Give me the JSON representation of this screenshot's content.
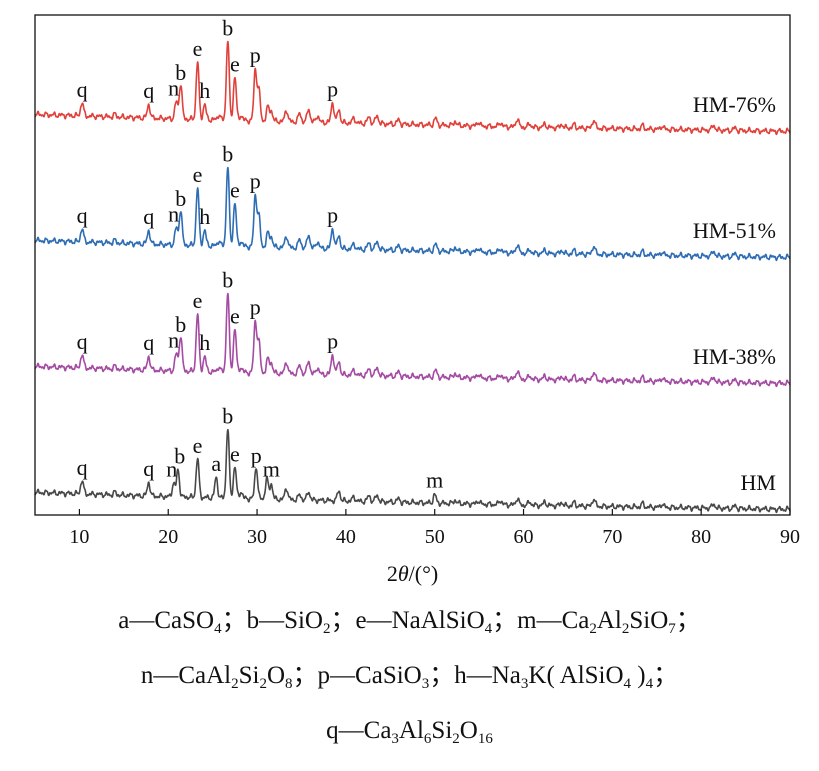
{
  "chart_data": {
    "type": "line",
    "title": "",
    "xlabel": "2θ/(°)",
    "ylabel": "",
    "xlim": [
      5,
      90
    ],
    "xticks": [
      10,
      20,
      30,
      40,
      50,
      60,
      70,
      80,
      90
    ],
    "yticks_shown": false,
    "grid": false,
    "colors": {
      "HM-76%": "#e0413a",
      "HM-51%": "#2e6db4",
      "HM-38%": "#a44ba3",
      "HM": "#484848"
    },
    "series": [
      {
        "name": "HM-76%",
        "baseline": [
          [
            5,
            0.8
          ],
          [
            20,
            0.55
          ],
          [
            40,
            0.3
          ],
          [
            60,
            0.05
          ],
          [
            90,
            -0.2
          ]
        ],
        "peaks": [
          [
            10.3,
            0.8
          ],
          [
            14.0,
            0.15
          ],
          [
            17.8,
            0.8
          ],
          [
            20.9,
            1.0
          ],
          [
            21.4,
            2.1
          ],
          [
            23.3,
            3.4
          ],
          [
            24.1,
            0.9
          ],
          [
            25.7,
            0.3
          ],
          [
            26.7,
            4.7
          ],
          [
            27.5,
            2.6
          ],
          [
            28.2,
            0.3
          ],
          [
            29.8,
            3.0
          ],
          [
            30.2,
            1.8
          ],
          [
            31.2,
            0.8
          ],
          [
            31.6,
            0.6
          ],
          [
            33.3,
            0.7
          ],
          [
            34.8,
            0.5
          ],
          [
            35.8,
            0.8
          ],
          [
            36.8,
            0.4
          ],
          [
            38.5,
            1.2
          ],
          [
            39.2,
            0.8
          ],
          [
            40.9,
            0.3
          ],
          [
            42.6,
            0.4
          ],
          [
            43.5,
            0.5
          ],
          [
            45.9,
            0.25
          ],
          [
            50.1,
            0.4
          ],
          [
            52.3,
            0.25
          ],
          [
            54.9,
            0.25
          ],
          [
            57.4,
            0.25
          ],
          [
            59.3,
            0.5
          ],
          [
            60.7,
            0.2
          ],
          [
            62.4,
            0.2
          ],
          [
            64.3,
            0.2
          ],
          [
            65.7,
            0.2
          ],
          [
            67.9,
            0.5
          ],
          [
            73.4,
            0.2
          ],
          [
            75.6,
            0.2
          ],
          [
            81.4,
            0.3
          ],
          [
            83.8,
            0.15
          ]
        ],
        "peak_labels": [
          {
            "x": 10.3,
            "label": "q"
          },
          {
            "x": 17.8,
            "label": "q"
          },
          {
            "x": 20.6,
            "label": "n"
          },
          {
            "x": 21.4,
            "label": "b"
          },
          {
            "x": 23.3,
            "label": "e"
          },
          {
            "x": 24.1,
            "label": "h"
          },
          {
            "x": 26.7,
            "label": "b"
          },
          {
            "x": 27.5,
            "label": "e"
          },
          {
            "x": 29.8,
            "label": "p"
          },
          {
            "x": 38.5,
            "label": "p"
          }
        ]
      },
      {
        "name": "HM-51%",
        "baseline": [
          [
            5,
            0.8
          ],
          [
            20,
            0.55
          ],
          [
            40,
            0.3
          ],
          [
            60,
            0.05
          ],
          [
            90,
            -0.2
          ]
        ],
        "peaks": [
          [
            10.3,
            0.8
          ],
          [
            14.0,
            0.15
          ],
          [
            17.8,
            0.8
          ],
          [
            20.9,
            1.0
          ],
          [
            21.4,
            2.1
          ],
          [
            23.3,
            3.4
          ],
          [
            24.1,
            0.9
          ],
          [
            25.7,
            0.3
          ],
          [
            26.7,
            4.7
          ],
          [
            27.5,
            2.6
          ],
          [
            28.2,
            0.3
          ],
          [
            29.8,
            3.0
          ],
          [
            30.2,
            1.8
          ],
          [
            31.2,
            0.8
          ],
          [
            31.6,
            0.6
          ],
          [
            33.3,
            0.7
          ],
          [
            34.8,
            0.5
          ],
          [
            35.8,
            0.8
          ],
          [
            36.8,
            0.4
          ],
          [
            38.5,
            1.2
          ],
          [
            39.2,
            0.8
          ],
          [
            40.9,
            0.3
          ],
          [
            42.6,
            0.4
          ],
          [
            43.5,
            0.5
          ],
          [
            45.9,
            0.25
          ],
          [
            50.1,
            0.4
          ],
          [
            52.3,
            0.25
          ],
          [
            54.9,
            0.25
          ],
          [
            57.4,
            0.25
          ],
          [
            59.3,
            0.5
          ],
          [
            60.7,
            0.2
          ],
          [
            62.4,
            0.2
          ],
          [
            64.3,
            0.2
          ],
          [
            65.7,
            0.2
          ],
          [
            67.9,
            0.5
          ],
          [
            73.4,
            0.2
          ],
          [
            75.6,
            0.2
          ],
          [
            81.4,
            0.3
          ],
          [
            83.8,
            0.15
          ]
        ],
        "peak_labels": [
          {
            "x": 10.3,
            "label": "q"
          },
          {
            "x": 17.8,
            "label": "q"
          },
          {
            "x": 20.6,
            "label": "n"
          },
          {
            "x": 21.4,
            "label": "b"
          },
          {
            "x": 23.3,
            "label": "e"
          },
          {
            "x": 24.1,
            "label": "h"
          },
          {
            "x": 26.7,
            "label": "b"
          },
          {
            "x": 27.5,
            "label": "e"
          },
          {
            "x": 29.8,
            "label": "p"
          },
          {
            "x": 38.5,
            "label": "p"
          }
        ]
      },
      {
        "name": "HM-38%",
        "baseline": [
          [
            5,
            0.8
          ],
          [
            20,
            0.55
          ],
          [
            40,
            0.3
          ],
          [
            60,
            0.05
          ],
          [
            90,
            -0.2
          ]
        ],
        "peaks": [
          [
            10.3,
            0.8
          ],
          [
            14.0,
            0.15
          ],
          [
            17.8,
            0.8
          ],
          [
            20.9,
            1.0
          ],
          [
            21.4,
            2.1
          ],
          [
            23.3,
            3.4
          ],
          [
            24.1,
            0.9
          ],
          [
            25.7,
            0.3
          ],
          [
            26.7,
            4.7
          ],
          [
            27.5,
            2.6
          ],
          [
            28.2,
            0.3
          ],
          [
            29.8,
            3.0
          ],
          [
            30.2,
            1.8
          ],
          [
            31.2,
            0.8
          ],
          [
            31.6,
            0.6
          ],
          [
            33.3,
            0.7
          ],
          [
            34.8,
            0.5
          ],
          [
            35.8,
            0.8
          ],
          [
            36.8,
            0.4
          ],
          [
            38.5,
            1.2
          ],
          [
            39.2,
            0.8
          ],
          [
            40.9,
            0.3
          ],
          [
            42.6,
            0.4
          ],
          [
            43.5,
            0.5
          ],
          [
            45.9,
            0.25
          ],
          [
            50.1,
            0.4
          ],
          [
            52.3,
            0.25
          ],
          [
            54.9,
            0.25
          ],
          [
            57.4,
            0.25
          ],
          [
            59.3,
            0.5
          ],
          [
            60.7,
            0.2
          ],
          [
            62.4,
            0.2
          ],
          [
            64.3,
            0.2
          ],
          [
            65.7,
            0.2
          ],
          [
            67.9,
            0.5
          ],
          [
            73.4,
            0.2
          ],
          [
            75.6,
            0.2
          ],
          [
            81.4,
            0.3
          ],
          [
            83.8,
            0.15
          ]
        ],
        "peak_labels": [
          {
            "x": 10.3,
            "label": "q"
          },
          {
            "x": 17.8,
            "label": "q"
          },
          {
            "x": 20.6,
            "label": "n"
          },
          {
            "x": 21.4,
            "label": "b"
          },
          {
            "x": 23.3,
            "label": "e"
          },
          {
            "x": 24.1,
            "label": "h"
          },
          {
            "x": 26.7,
            "label": "b"
          },
          {
            "x": 27.5,
            "label": "e"
          },
          {
            "x": 29.8,
            "label": "p"
          },
          {
            "x": 38.5,
            "label": "p"
          }
        ]
      },
      {
        "name": "HM",
        "baseline": [
          [
            5,
            0.8
          ],
          [
            20,
            0.55
          ],
          [
            40,
            0.3
          ],
          [
            60,
            0.05
          ],
          [
            90,
            -0.2
          ]
        ],
        "peaks": [
          [
            10.3,
            0.8
          ],
          [
            14.0,
            0.15
          ],
          [
            17.8,
            0.8
          ],
          [
            20.6,
            0.8
          ],
          [
            21.1,
            1.6
          ],
          [
            23.3,
            2.3
          ],
          [
            25.4,
            1.2
          ],
          [
            26.7,
            4.1
          ],
          [
            27.5,
            1.9
          ],
          [
            28.2,
            0.4
          ],
          [
            29.9,
            1.9
          ],
          [
            31.1,
            1.2
          ],
          [
            31.6,
            0.9
          ],
          [
            33.3,
            0.7
          ],
          [
            34.8,
            0.3
          ],
          [
            35.8,
            0.5
          ],
          [
            39.2,
            0.6
          ],
          [
            40.9,
            0.25
          ],
          [
            42.6,
            0.35
          ],
          [
            43.5,
            0.4
          ],
          [
            45.9,
            0.2
          ],
          [
            50.0,
            0.5
          ],
          [
            52.3,
            0.2
          ],
          [
            54.9,
            0.2
          ],
          [
            57.4,
            0.25
          ],
          [
            59.3,
            0.4
          ],
          [
            60.7,
            0.2
          ],
          [
            62.4,
            0.2
          ],
          [
            64.3,
            0.2
          ],
          [
            65.7,
            0.2
          ],
          [
            67.9,
            0.45
          ],
          [
            73.4,
            0.2
          ],
          [
            75.6,
            0.2
          ],
          [
            81.4,
            0.25
          ],
          [
            83.8,
            0.15
          ]
        ],
        "peak_labels": [
          {
            "x": 10.3,
            "label": "q"
          },
          {
            "x": 17.8,
            "label": "q"
          },
          {
            "x": 20.4,
            "label": "n"
          },
          {
            "x": 21.3,
            "label": "b"
          },
          {
            "x": 23.3,
            "label": "e"
          },
          {
            "x": 25.4,
            "label": "a"
          },
          {
            "x": 26.7,
            "label": "b"
          },
          {
            "x": 27.5,
            "label": "e"
          },
          {
            "x": 29.9,
            "label": "p"
          },
          {
            "x": 31.6,
            "label": "m"
          },
          {
            "x": 50.0,
            "label": "m"
          }
        ]
      }
    ],
    "legend_lines": [
      [
        {
          "t": "a—CaSO"
        },
        {
          "sub": "4"
        },
        {
          "t": "；b—SiO"
        },
        {
          "sub": "2"
        },
        {
          "t": "；e—NaAlSiO"
        },
        {
          "sub": "4"
        },
        {
          "t": "；m—Ca"
        },
        {
          "sub": "2"
        },
        {
          "t": "Al"
        },
        {
          "sub": "2"
        },
        {
          "t": "SiO"
        },
        {
          "sub": "7"
        },
        {
          "t": "；"
        }
      ],
      [
        {
          "t": "n—CaAl"
        },
        {
          "sub": "2"
        },
        {
          "t": "Si"
        },
        {
          "sub": "2"
        },
        {
          "t": "O"
        },
        {
          "sub": "8"
        },
        {
          "t": "；p—CaSiO"
        },
        {
          "sub": "3"
        },
        {
          "t": "；h—Na"
        },
        {
          "sub": "3"
        },
        {
          "t": "K( AlSiO"
        },
        {
          "sub": "4"
        },
        {
          "t": " )"
        },
        {
          "sub": "4"
        },
        {
          "t": "；"
        }
      ],
      [
        {
          "t": "q—Ca"
        },
        {
          "sub": "3"
        },
        {
          "t": "Al"
        },
        {
          "sub": "6"
        },
        {
          "t": "Si"
        },
        {
          "sub": "2"
        },
        {
          "t": "O"
        },
        {
          "sub": "16"
        }
      ]
    ]
  }
}
